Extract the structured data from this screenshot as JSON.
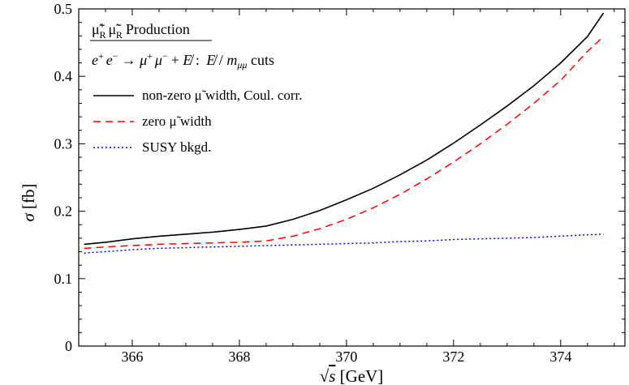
{
  "chart_data": {
    "type": "line",
    "title": "μ̃⁺_R μ̃⁻_R Production",
    "subtitle": "e⁺ e⁻ → μ⁺ μ⁻ + E̸ :  E̸ / m_μμ cuts",
    "xlabel": "√s [GeV]",
    "ylabel": "σ [fb]",
    "xlim": [
      365.0,
      375.2
    ],
    "ylim": [
      0,
      0.5
    ],
    "xticks": [
      366,
      368,
      370,
      372,
      374
    ],
    "xtick_labels": [
      "366",
      "368",
      "370",
      "372",
      "374"
    ],
    "yticks": [
      0,
      0.1,
      0.2,
      0.3,
      0.4,
      0.5
    ],
    "ytick_labels": [
      "0",
      "0.1",
      "0.2",
      "0.3",
      "0.4",
      "0.5"
    ],
    "grid": false,
    "legend_position": "top-left",
    "series": [
      {
        "name": "non-zero μ̃ width, Coul. corr.",
        "color": "#000000",
        "dash": "solid",
        "x": [
          365.1,
          365.5,
          366.0,
          366.5,
          367.0,
          367.5,
          368.0,
          368.5,
          369.0,
          369.5,
          370.0,
          370.5,
          371.0,
          371.5,
          372.0,
          372.5,
          373.0,
          373.5,
          374.0,
          374.5,
          374.8
        ],
        "y": [
          0.151,
          0.154,
          0.159,
          0.163,
          0.166,
          0.169,
          0.173,
          0.178,
          0.188,
          0.201,
          0.217,
          0.234,
          0.254,
          0.276,
          0.301,
          0.328,
          0.356,
          0.386,
          0.42,
          0.459,
          0.494
        ]
      },
      {
        "name": "zero μ̃ width",
        "color": "#ff0000",
        "dash": "dashed",
        "x": [
          365.1,
          365.5,
          366.0,
          366.5,
          367.0,
          367.5,
          368.0,
          368.5,
          369.0,
          369.5,
          370.0,
          370.5,
          371.0,
          371.5,
          372.0,
          372.5,
          373.0,
          373.5,
          374.0,
          374.5,
          374.8
        ],
        "y": [
          0.145,
          0.147,
          0.149,
          0.151,
          0.152,
          0.153,
          0.154,
          0.156,
          0.163,
          0.174,
          0.188,
          0.205,
          0.225,
          0.248,
          0.273,
          0.3,
          0.329,
          0.36,
          0.394,
          0.437,
          0.459
        ]
      },
      {
        "name": "SUSY bkgd.",
        "color": "#0000ff",
        "dash": "dotted",
        "x": [
          365.1,
          365.5,
          366.0,
          366.5,
          367.0,
          367.5,
          368.0,
          368.5,
          369.0,
          369.5,
          370.0,
          370.5,
          371.0,
          371.5,
          372.0,
          372.5,
          373.0,
          373.5,
          374.0,
          374.5,
          374.8
        ],
        "y": [
          0.138,
          0.14,
          0.143,
          0.145,
          0.146,
          0.147,
          0.148,
          0.149,
          0.15,
          0.151,
          0.152,
          0.153,
          0.155,
          0.156,
          0.158,
          0.159,
          0.16,
          0.161,
          0.163,
          0.165,
          0.166
        ]
      }
    ]
  }
}
